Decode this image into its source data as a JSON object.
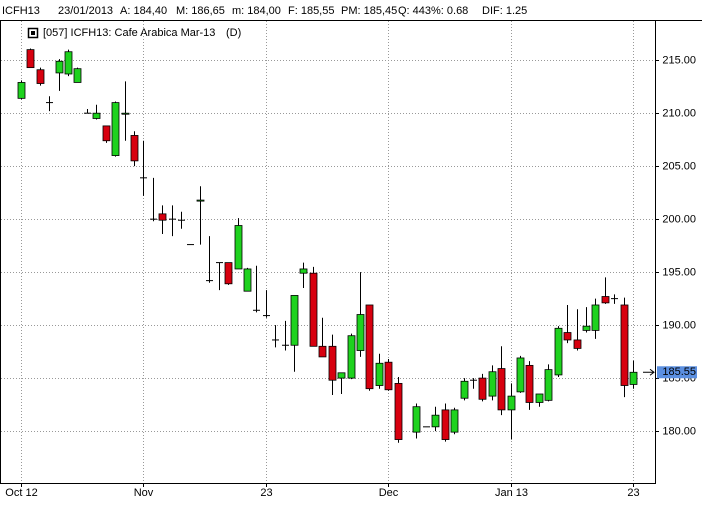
{
  "header": [
    "ICFH13",
    "23/01/2013",
    "A: 184,40",
    "M: 186,65",
    "m: 184,00",
    "F: 185,55",
    "PM: 185,45",
    "Q: 443",
    "%: 0.68",
    "DIF: 1.25"
  ],
  "chart_data": {
    "type": "candlestick",
    "title": "[057] ICFH13: Cafe Arabica Mar-13",
    "subtitle": "(D)",
    "up_color": "#1ed21e",
    "down_color": "#d7000f",
    "grid": true,
    "ylim": [
      175.1,
      218.7
    ],
    "yticks": [
      {
        "value": 180,
        "label": "180.00"
      },
      {
        "value": 185,
        "label": "185.00"
      },
      {
        "value": 190,
        "label": "190.00"
      },
      {
        "value": 195,
        "label": "195.00"
      },
      {
        "value": 200,
        "label": "200.00"
      },
      {
        "value": 205,
        "label": "205.00"
      },
      {
        "value": 210,
        "label": "210.00"
      },
      {
        "value": 215,
        "label": "215.00"
      }
    ],
    "last_price": {
      "value": 185.55,
      "label": "185.55"
    },
    "categories": [
      "Oct 12",
      null,
      null,
      null,
      null,
      null,
      null,
      null,
      null,
      null,
      null,
      null,
      null,
      "Nov",
      null,
      null,
      null,
      null,
      null,
      null,
      null,
      null,
      null,
      null,
      null,
      null,
      "23",
      null,
      null,
      null,
      null,
      null,
      null,
      null,
      null,
      null,
      null,
      null,
      null,
      "Dec",
      null,
      null,
      null,
      null,
      null,
      null,
      null,
      null,
      null,
      null,
      null,
      null,
      "Jan 13",
      null,
      null,
      null,
      null,
      null,
      null,
      null,
      null,
      null,
      null,
      null,
      null,
      "23"
    ],
    "open": [
      211.4,
      216.0,
      214.1,
      211.0,
      213.8,
      213.7,
      212.9,
      210.0,
      209.5,
      208.8,
      206.0,
      209.9,
      207.9,
      203.9,
      200.0,
      200.5,
      200.0,
      199.9,
      197.6,
      201.7,
      194.2,
      195.9,
      195.9,
      195.3,
      193.2,
      191.4,
      190.9,
      188.6,
      188.1,
      188.1,
      194.9,
      194.9,
      188.0,
      188.0,
      185.0,
      185.0,
      187.6,
      191.9,
      184.3,
      186.5,
      184.5,
      null,
      179.9,
      180.4,
      180.4,
      182.0,
      179.9,
      183.1,
      184.8,
      185.0,
      183.3,
      185.9,
      182.0,
      183.7,
      186.2,
      182.7,
      182.9,
      185.3,
      189.3,
      188.6,
      189.5,
      189.5,
      192.7,
      192.5,
      191.9,
      184.4
    ],
    "high": [
      213.1,
      216.1,
      214.3,
      211.6,
      215.1,
      216.0,
      214.3,
      210.4,
      210.8,
      208.8,
      211.1,
      213.0,
      208.3,
      207.4,
      203.9,
      201.3,
      201.3,
      200.7,
      197.6,
      203.1,
      198.4,
      195.9,
      195.9,
      200.1,
      195.4,
      195.6,
      193.3,
      190.0,
      190.4,
      192.8,
      195.9,
      195.5,
      190.7,
      189.1,
      185.5,
      189.2,
      195.0,
      191.9,
      187.3,
      186.8,
      185.1,
      null,
      182.6,
      180.4,
      182.3,
      182.6,
      182.2,
      185.0,
      185.0,
      185.4,
      186.2,
      188.0,
      184.5,
      187.1,
      186.6,
      183.5,
      186.3,
      189.9,
      191.9,
      191.5,
      191.7,
      192.5,
      194.5,
      192.9,
      192.6,
      186.65
    ],
    "low": [
      211.3,
      214.3,
      212.6,
      210.2,
      212.1,
      213.5,
      212.9,
      210.0,
      209.4,
      207.2,
      205.9,
      207.4,
      205.0,
      202.2,
      199.8,
      198.6,
      198.4,
      199.1,
      197.6,
      197.6,
      194.0,
      193.3,
      193.8,
      195.3,
      193.2,
      191.2,
      190.7,
      187.9,
      187.6,
      185.6,
      193.5,
      188.0,
      187.0,
      183.4,
      183.5,
      184.9,
      187.0,
      183.8,
      184.0,
      183.8,
      178.9,
      null,
      179.3,
      180.4,
      180.0,
      179.0,
      179.7,
      182.9,
      184.0,
      182.8,
      182.9,
      181.5,
      179.2,
      183.6,
      182.0,
      182.3,
      182.8,
      185.1,
      188.3,
      187.6,
      189.3,
      188.7,
      192.0,
      192.0,
      183.2,
      184.0
    ],
    "close": [
      212.9,
      214.3,
      212.8,
      211.0,
      214.9,
      215.8,
      214.2,
      210.0,
      210.0,
      207.4,
      211.0,
      210.0,
      205.5,
      203.9,
      200.0,
      199.9,
      200.0,
      199.9,
      197.6,
      201.8,
      194.2,
      195.9,
      193.9,
      199.4,
      195.3,
      191.4,
      190.9,
      188.6,
      188.1,
      192.8,
      195.3,
      188.0,
      187.0,
      184.8,
      185.5,
      189.0,
      191.0,
      184.0,
      186.4,
      183.9,
      179.2,
      null,
      182.3,
      180.4,
      181.5,
      179.2,
      182.0,
      184.7,
      184.8,
      183.0,
      185.6,
      182.0,
      183.3,
      186.9,
      182.7,
      183.5,
      185.8,
      189.7,
      188.6,
      187.8,
      189.9,
      191.9,
      192.1,
      192.5,
      184.3,
      185.55
    ]
  }
}
